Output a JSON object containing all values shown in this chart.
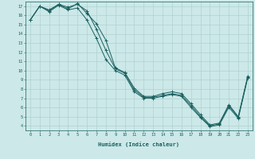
{
  "xlabel": "Humidex (Indice chaleur)",
  "bg_color": "#cce8e8",
  "grid_color": "#aacccc",
  "line_color": "#1a6060",
  "xlim": [
    -0.5,
    23.5
  ],
  "ylim": [
    3.5,
    17.5
  ],
  "xticks": [
    0,
    1,
    2,
    3,
    4,
    5,
    6,
    7,
    8,
    9,
    10,
    11,
    12,
    13,
    14,
    15,
    16,
    17,
    18,
    19,
    20,
    21,
    22,
    23
  ],
  "yticks": [
    4,
    5,
    6,
    7,
    8,
    9,
    10,
    11,
    12,
    13,
    14,
    15,
    16,
    17
  ],
  "line1_x": [
    0,
    1,
    2,
    3,
    4,
    5,
    6,
    7,
    8,
    9,
    10,
    11,
    12,
    13,
    14,
    15,
    16,
    17,
    18,
    19,
    20,
    21,
    22,
    23
  ],
  "line1_y": [
    15.5,
    17.0,
    16.5,
    17.2,
    16.7,
    17.3,
    16.2,
    15.1,
    13.3,
    10.3,
    9.8,
    8.1,
    7.2,
    7.2,
    7.5,
    7.7,
    7.5,
    6.4,
    5.2,
    4.1,
    4.3,
    6.3,
    5.0,
    9.4
  ],
  "line2_x": [
    0,
    1,
    2,
    3,
    4,
    5,
    6,
    7,
    8,
    9,
    10,
    11,
    12,
    13,
    14,
    15,
    16,
    17,
    18,
    19,
    20,
    21,
    22,
    23
  ],
  "line2_y": [
    15.5,
    17.0,
    16.6,
    17.2,
    16.9,
    17.2,
    16.5,
    14.5,
    12.2,
    10.2,
    9.7,
    7.9,
    7.1,
    7.1,
    7.3,
    7.5,
    7.3,
    6.2,
    5.0,
    4.0,
    4.2,
    6.2,
    4.9,
    9.3
  ],
  "line3_x": [
    0,
    1,
    2,
    3,
    4,
    5,
    6,
    7,
    8,
    9,
    10,
    11,
    12,
    13,
    14,
    15,
    16,
    17,
    18,
    19,
    20,
    21,
    22,
    23
  ],
  "line3_y": [
    15.5,
    17.0,
    16.4,
    17.1,
    16.6,
    16.8,
    15.5,
    13.5,
    11.2,
    10.0,
    9.5,
    7.7,
    7.0,
    7.0,
    7.2,
    7.4,
    7.2,
    6.0,
    4.9,
    3.9,
    4.1,
    6.0,
    4.8,
    9.2
  ]
}
